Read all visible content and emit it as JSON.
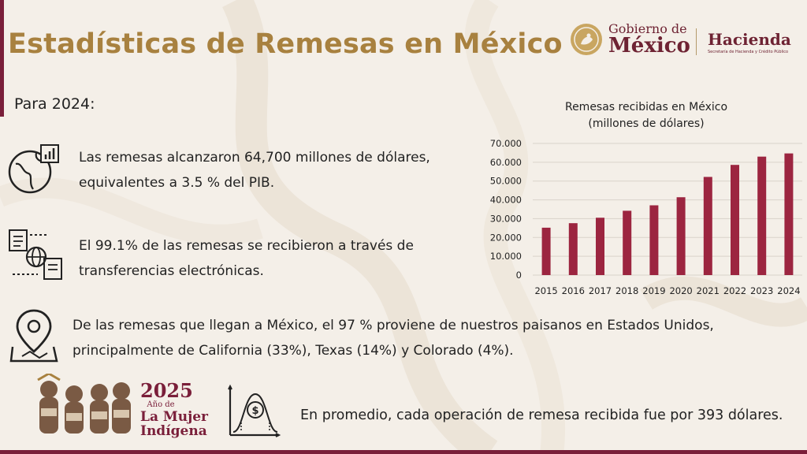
{
  "header": {
    "title": "Estadísticas de Remesas en México",
    "gobierno_line1": "Gobierno de",
    "gobierno_line2": "México",
    "hacienda_line1": "Hacienda",
    "hacienda_line2": "Secretaría de Hacienda y Crédito Público"
  },
  "subtitle": "Para 2024:",
  "stats": {
    "s1_line1": "Las remesas alcanzaron 64,700 millones de dólares,",
    "s1_line2": "equivalentes a 3.5 % del PIB.",
    "s2_line1": "El 99.1% de las remesas se recibieron a través de",
    "s2_line2": "transferencias electrónicas.",
    "s3_line1": "De las remesas que llegan a México, el 97 % proviene de nuestros paisanos en Estados Unidos,",
    "s3_line2": "principalmente de California (33%), Texas (14%) y Colorado (4%).",
    "s4": "En promedio, cada operación de remesa recibida fue por 393 dólares."
  },
  "badge": {
    "year": "2025",
    "small": "Año de",
    "line2": "La Mujer",
    "line3": "Indígena"
  },
  "icons": {
    "globe_chart": "globe-chart-icon",
    "transfer": "electronic-transfer-icon",
    "map_pin": "map-pin-icon",
    "coin_chart": "coin-distribution-icon"
  },
  "colors": {
    "bar": "#9c2540",
    "title": "#a8813f",
    "accent": "#7a1f3a"
  },
  "chart_data": {
    "type": "bar",
    "title_line1": "Remesas recibidas en México",
    "title_line2": "(millones de dólares)",
    "categories": [
      "2015",
      "2016",
      "2017",
      "2018",
      "2019",
      "2020",
      "2021",
      "2022",
      "2023",
      "2024"
    ],
    "values": [
      25200,
      27600,
      30500,
      34200,
      37100,
      41400,
      52200,
      58600,
      63000,
      64700
    ],
    "ylim": [
      0,
      70000
    ],
    "yticks": [
      0,
      10000,
      20000,
      30000,
      40000,
      50000,
      60000,
      70000
    ],
    "ytick_labels": [
      "0",
      "10.000",
      "20.000",
      "30.000",
      "40.000",
      "50.000",
      "60.000",
      "70.000"
    ],
    "grid": true,
    "legend": "none"
  }
}
